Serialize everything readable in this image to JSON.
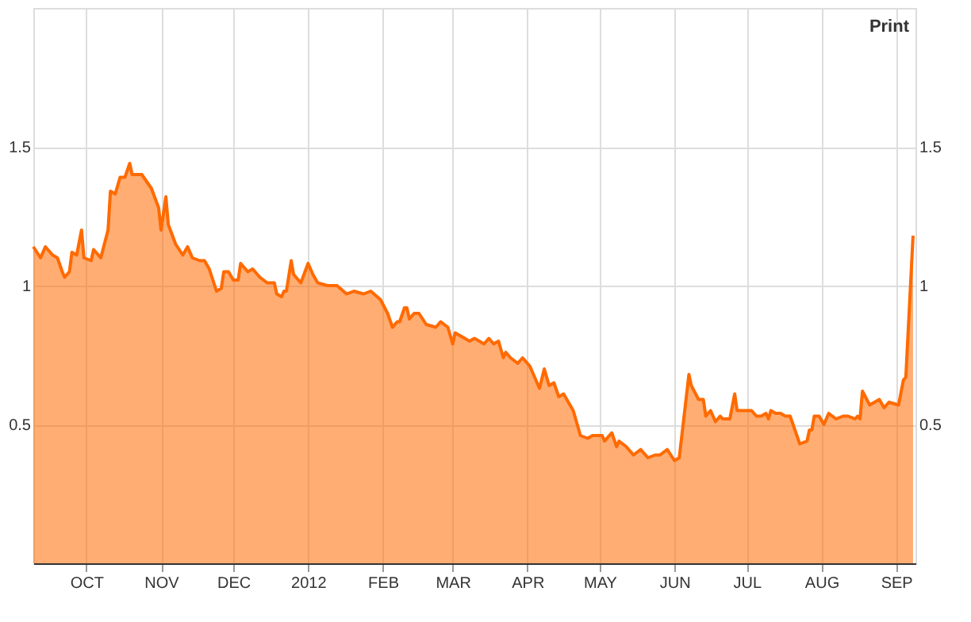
{
  "chart_data": {
    "type": "area",
    "x": [
      "2011-09-09",
      "2011-09-12",
      "2011-09-14",
      "2011-09-17",
      "2011-09-19",
      "2011-09-21",
      "2011-09-22",
      "2011-09-24",
      "2011-09-25",
      "2011-09-27",
      "2011-09-29",
      "2011-09-30",
      "2011-10-03",
      "2011-10-04",
      "2011-10-07",
      "2011-10-10",
      "2011-10-11",
      "2011-10-13",
      "2011-10-15",
      "2011-10-17",
      "2011-10-19",
      "2011-10-20",
      "2011-10-24",
      "2011-10-28",
      "2011-10-31",
      "2011-11-01",
      "2011-11-03",
      "2011-11-04",
      "2011-11-07",
      "2011-11-10",
      "2011-11-12",
      "2011-11-14",
      "2011-11-17",
      "2011-11-19",
      "2011-11-21",
      "2011-11-24",
      "2011-11-26",
      "2011-11-27",
      "2011-11-29",
      "2011-12-01",
      "2011-12-03",
      "2011-12-04",
      "2011-12-07",
      "2011-12-09",
      "2011-12-12",
      "2011-12-15",
      "2011-12-18",
      "2011-12-19",
      "2011-12-21",
      "2011-12-22",
      "2011-12-23",
      "2011-12-25",
      "2011-12-26",
      "2011-12-29",
      "2012-01-01",
      "2012-01-03",
      "2012-01-05",
      "2012-01-09",
      "2012-01-13",
      "2012-01-17",
      "2012-01-20",
      "2012-01-24",
      "2012-01-27",
      "2012-01-31",
      "2012-02-03",
      "2012-02-05",
      "2012-02-07",
      "2012-02-08",
      "2012-02-10",
      "2012-02-11",
      "2012-02-12",
      "2012-02-14",
      "2012-02-16",
      "2012-02-19",
      "2012-02-23",
      "2012-02-25",
      "2012-02-28",
      "2012-03-01",
      "2012-03-02",
      "2012-03-06",
      "2012-03-08",
      "2012-03-10",
      "2012-03-12",
      "2012-03-14",
      "2012-03-16",
      "2012-03-18",
      "2012-03-20",
      "2012-03-22",
      "2012-03-23",
      "2012-03-25",
      "2012-03-28",
      "2012-03-30",
      "2012-04-02",
      "2012-04-06",
      "2012-04-08",
      "2012-04-10",
      "2012-04-12",
      "2012-04-14",
      "2012-04-16",
      "2012-04-20",
      "2012-04-23",
      "2012-04-26",
      "2012-04-28",
      "2012-05-02",
      "2012-05-03",
      "2012-05-06",
      "2012-05-08",
      "2012-05-09",
      "2012-05-12",
      "2012-05-15",
      "2012-05-18",
      "2012-05-20",
      "2012-05-21",
      "2012-05-24",
      "2012-05-26",
      "2012-05-29",
      "2012-06-01",
      "2012-06-03",
      "2012-06-07",
      "2012-06-08",
      "2012-06-11",
      "2012-06-13",
      "2012-06-14",
      "2012-06-16",
      "2012-06-18",
      "2012-06-20",
      "2012-06-21",
      "2012-06-24",
      "2012-06-26",
      "2012-06-27",
      "2012-06-29",
      "2012-07-03",
      "2012-07-05",
      "2012-07-07",
      "2012-07-09",
      "2012-07-10",
      "2012-07-11",
      "2012-07-13",
      "2012-07-15",
      "2012-07-17",
      "2012-07-19",
      "2012-07-21",
      "2012-07-23",
      "2012-07-26",
      "2012-07-27",
      "2012-07-28",
      "2012-07-29",
      "2012-07-31",
      "2012-08-02",
      "2012-08-04",
      "2012-08-07",
      "2012-08-10",
      "2012-08-12",
      "2012-08-15",
      "2012-08-16",
      "2012-08-17",
      "2012-08-18",
      "2012-08-21",
      "2012-08-25",
      "2012-08-27",
      "2012-08-29",
      "2012-09-02",
      "2012-09-04",
      "2012-09-05",
      "2012-09-08"
    ],
    "series": [
      {
        "color": "#ff6a00",
        "values": [
          1.14,
          1.1,
          1.14,
          1.11,
          1.1,
          1.05,
          1.03,
          1.05,
          1.12,
          1.11,
          1.2,
          1.1,
          1.09,
          1.13,
          1.1,
          1.2,
          1.34,
          1.33,
          1.39,
          1.39,
          1.44,
          1.4,
          1.4,
          1.35,
          1.28,
          1.2,
          1.32,
          1.22,
          1.15,
          1.11,
          1.14,
          1.1,
          1.09,
          1.09,
          1.06,
          0.98,
          0.99,
          1.05,
          1.05,
          1.02,
          1.02,
          1.08,
          1.05,
          1.06,
          1.03,
          1.01,
          1.01,
          0.97,
          0.96,
          0.98,
          0.98,
          1.09,
          1.04,
          1.01,
          1.08,
          1.04,
          1.01,
          1.0,
          1.0,
          0.97,
          0.98,
          0.97,
          0.98,
          0.95,
          0.9,
          0.85,
          0.87,
          0.87,
          0.92,
          0.92,
          0.88,
          0.9,
          0.9,
          0.86,
          0.85,
          0.87,
          0.85,
          0.79,
          0.83,
          0.81,
          0.8,
          0.81,
          0.8,
          0.79,
          0.81,
          0.79,
          0.8,
          0.74,
          0.76,
          0.74,
          0.72,
          0.74,
          0.71,
          0.63,
          0.7,
          0.64,
          0.65,
          0.6,
          0.61,
          0.55,
          0.46,
          0.45,
          0.46,
          0.46,
          0.44,
          0.47,
          0.42,
          0.44,
          0.42,
          0.39,
          0.41,
          0.39,
          0.38,
          0.39,
          0.39,
          0.41,
          0.37,
          0.38,
          0.68,
          0.64,
          0.59,
          0.59,
          0.53,
          0.55,
          0.51,
          0.53,
          0.52,
          0.52,
          0.61,
          0.55,
          0.55,
          0.55,
          0.53,
          0.53,
          0.54,
          0.52,
          0.55,
          0.54,
          0.54,
          0.53,
          0.53,
          0.48,
          0.43,
          0.44,
          0.48,
          0.48,
          0.53,
          0.53,
          0.5,
          0.54,
          0.52,
          0.53,
          0.53,
          0.52,
          0.53,
          0.52,
          0.62,
          0.57,
          0.59,
          0.56,
          0.58,
          0.57,
          0.66,
          0.67,
          1.18
        ]
      }
    ],
    "xlim": [
      "2011-09-09",
      "2012-09-09"
    ],
    "xticks": [
      {
        "value": "2011-10-01",
        "label": "OCT"
      },
      {
        "value": "2011-11-01",
        "label": "NOV"
      },
      {
        "value": "2011-12-01",
        "label": "DEC"
      },
      {
        "value": "2012-01-01",
        "label": "2012"
      },
      {
        "value": "2012-02-01",
        "label": "FEB"
      },
      {
        "value": "2012-03-01",
        "label": "MAR"
      },
      {
        "value": "2012-04-01",
        "label": "APR"
      },
      {
        "value": "2012-05-01",
        "label": "MAY"
      },
      {
        "value": "2012-06-01",
        "label": "JUN"
      },
      {
        "value": "2012-07-01",
        "label": "JUL"
      },
      {
        "value": "2012-08-01",
        "label": "AUG"
      },
      {
        "value": "2012-09-01",
        "label": "SEP"
      }
    ],
    "ylim": [
      0,
      2
    ],
    "yticks": [
      0.5,
      1,
      1.5
    ],
    "y2lim": [
      0,
      2
    ],
    "y2ticks": [
      0.5,
      1,
      1.5
    ],
    "grid": true,
    "annotations": [
      "Print"
    ]
  }
}
